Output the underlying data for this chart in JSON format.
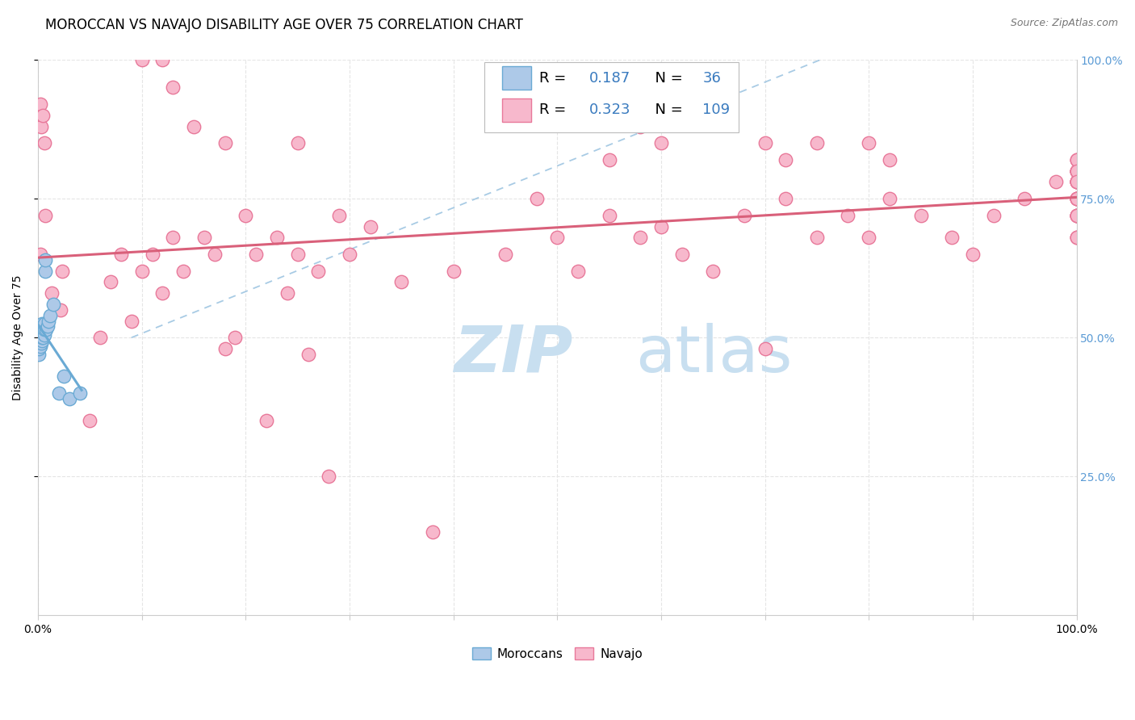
{
  "title": "MOROCCAN VS NAVAJO DISABILITY AGE OVER 75 CORRELATION CHART",
  "source": "Source: ZipAtlas.com",
  "ylabel": "Disability Age Over 75",
  "moroccan_R": 0.187,
  "moroccan_N": 36,
  "navajo_R": 0.323,
  "navajo_N": 109,
  "moroccan_color": "#adc9e8",
  "moroccan_edge_color": "#6aaad4",
  "navajo_color": "#f7b8cc",
  "navajo_edge_color": "#e8799a",
  "trendline_moroccan_color": "#6aaad4",
  "trendline_navajo_color": "#d9607a",
  "watermark_zip": "ZIP",
  "watermark_atlas": "atlas",
  "watermark_color_zip": "#c8dff0",
  "watermark_color_atlas": "#c8dff0",
  "background_color": "#ffffff",
  "grid_color": "#e5e5e5",
  "axis_color": "#cccccc",
  "right_tick_color": "#5b9bd5",
  "title_fontsize": 12,
  "label_fontsize": 10,
  "tick_fontsize": 10,
  "legend_fontsize": 13
}
